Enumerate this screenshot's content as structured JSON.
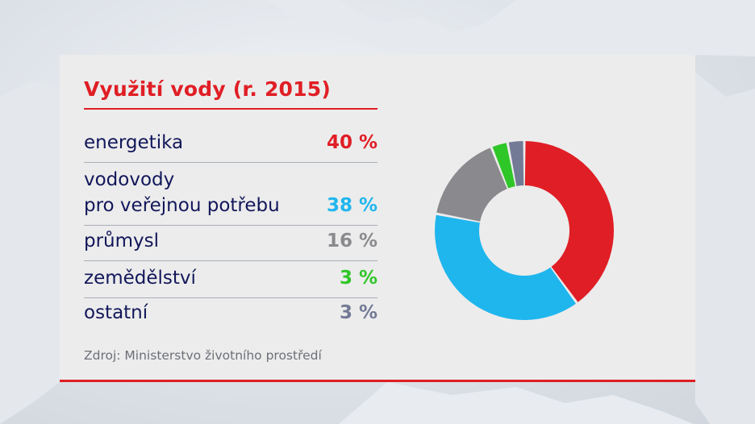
{
  "title": "Využití vody (r. 2015)",
  "source": "Zdroj: Ministerstvo životního prostředí",
  "rows": [
    {
      "label_lines": [
        "energetika"
      ],
      "value": "40 %",
      "color": "#e01e25"
    },
    {
      "label_lines": [
        "vodovody",
        "pro veřejnou potřebu"
      ],
      "value": "38 %",
      "color": "#1fb6ee"
    },
    {
      "label_lines": [
        "průmysl"
      ],
      "value": "16 %",
      "color": "#8a8a8e"
    },
    {
      "label_lines": [
        "zemědělství"
      ],
      "value": "3 %",
      "color": "#2fc628"
    },
    {
      "label_lines": [
        "ostatní"
      ],
      "value": "3 %",
      "color": "#727a96"
    }
  ],
  "chart_data": {
    "type": "pie",
    "donut": true,
    "title": "Využití vody (r. 2015)",
    "categories": [
      "energetika",
      "vodovody pro veřejnou potřebu",
      "průmysl",
      "zemědělství",
      "ostatní"
    ],
    "values": [
      40,
      38,
      16,
      3,
      3
    ],
    "unit": "%",
    "colors": [
      "#e01e25",
      "#1fb6ee",
      "#8a8a8e",
      "#2fc628",
      "#727a96"
    ]
  }
}
